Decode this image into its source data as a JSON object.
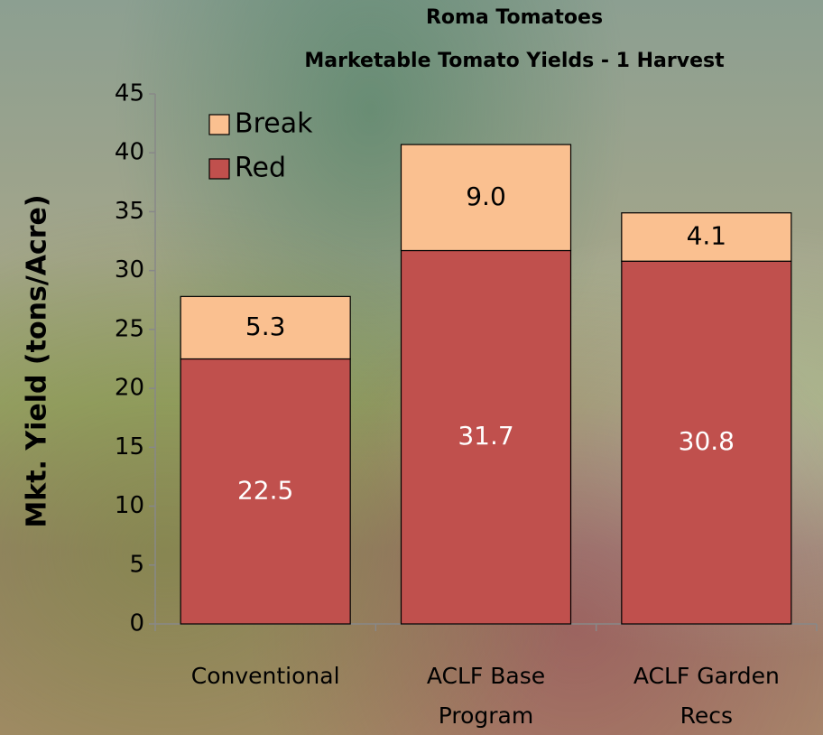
{
  "chart_data": {
    "type": "stacked_bar",
    "title": "Roma Tomatoes",
    "subtitle": "Marketable Tomato Yields - 1 Harvest",
    "y_label": "Mkt. Yield (tons/Acre)",
    "categories": [
      "Conventional",
      "ACLF Base Program",
      "ACLF Garden Recs"
    ],
    "series": [
      {
        "name": "Red",
        "color": "#c0504d",
        "label_color": "#ffffff",
        "values": [
          22.5,
          31.7,
          30.8
        ]
      },
      {
        "name": "Break",
        "color": "#fac090",
        "label_color": "#000000",
        "values": [
          5.3,
          9.0,
          4.1
        ],
        "value_labels": [
          "5.3",
          "9.0",
          "4.1"
        ]
      }
    ],
    "ylim": [
      0,
      45
    ],
    "yticks": [
      0,
      5,
      10,
      15,
      20,
      25,
      30,
      35,
      40,
      45
    ],
    "legend": "upper-left"
  }
}
